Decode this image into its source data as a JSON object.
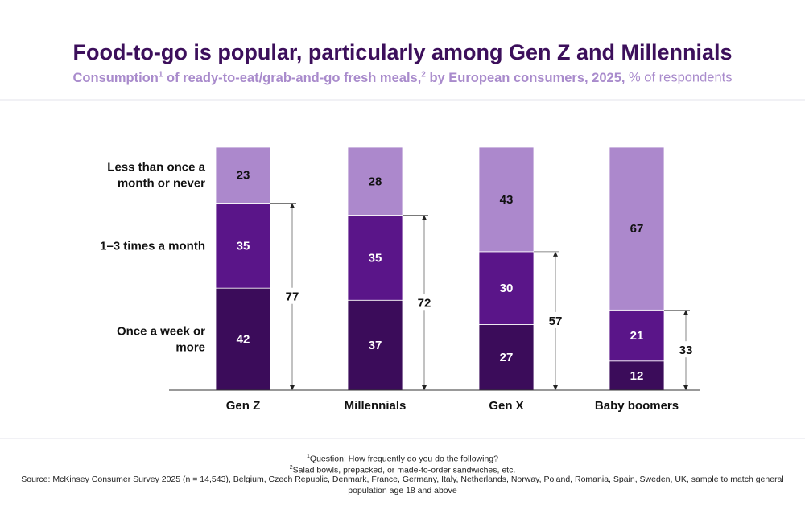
{
  "title": "Food-to-go is popular, particularly among Gen Z and Millennials",
  "subtitle": {
    "part1": "Consumption",
    "sup1": "1",
    "part2": " of ready-to-eat/grab-and-go fresh meals,",
    "sup2": "2",
    "part3": " by European consumers, 2025,",
    "unit": " % of respondents"
  },
  "colors": {
    "title": "#3c0f5b",
    "subtitle": "#a98bcc",
    "weekly": "#3b0c5a",
    "monthly": "#5a1589",
    "rarely": "#ac88cc"
  },
  "chart_data": {
    "type": "bar",
    "stacked": true,
    "categories": [
      "Gen Z",
      "Millennials",
      "Gen X",
      "Baby boomers"
    ],
    "series": [
      {
        "name": "Once a week or more",
        "label_lines": [
          "Once a week or",
          "more"
        ],
        "values": [
          42,
          37,
          27,
          12
        ],
        "color": "#3b0c5a"
      },
      {
        "name": "1–3 times a month",
        "label_lines": [
          "1–3 times a month"
        ],
        "values": [
          35,
          35,
          30,
          21
        ],
        "color": "#5a1589"
      },
      {
        "name": "Less than once a month or never",
        "label_lines": [
          "Less than once a",
          "month or never"
        ],
        "values": [
          23,
          28,
          43,
          67
        ],
        "color": "#ac88cc"
      }
    ],
    "totals_at_least_monthly": [
      77,
      72,
      57,
      33
    ],
    "ylim": [
      0,
      100
    ]
  },
  "footnotes": {
    "note1_sup": "1",
    "note1": "Question: How frequently do you do the following?",
    "note2_sup": "2",
    "note2": "Salad bowls, prepacked, or made-to-order sandwiches, etc.",
    "source_line1": "Source: McKinsey Consumer Survey 2025 (n = 14,543), Belgium, Czech Republic, Denmark, France, Germany, Italy, Netherlands, Norway, Poland, Romania, Spain, Sweden, UK, sample to match general",
    "source_line2": "population age 18 and above"
  }
}
